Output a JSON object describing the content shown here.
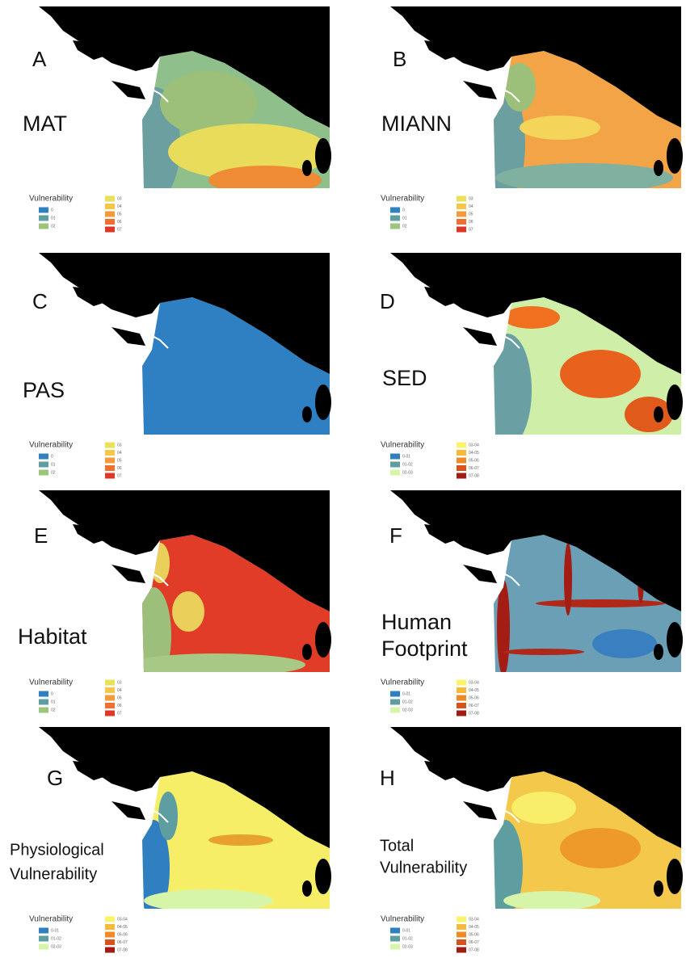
{
  "panels": [
    {
      "letter": "A",
      "label": [
        "MAT"
      ],
      "legend_title": "Vulnerability",
      "legend_labels": [
        "0",
        "01",
        "02",
        "03",
        "04",
        "05",
        "06",
        "07"
      ]
    },
    {
      "letter": "B",
      "label": [
        "MIANN"
      ],
      "legend_title": "Vulnerability",
      "legend_labels": [
        "0",
        "01",
        "02",
        "03",
        "04",
        "05",
        "06",
        "07"
      ]
    },
    {
      "letter": "C",
      "label": [
        "PAS"
      ],
      "legend_title": "Vulnerability",
      "legend_labels": [
        "0",
        "01",
        "02",
        "03",
        "04",
        "05",
        "06",
        "07"
      ]
    },
    {
      "letter": "D",
      "label": [
        "SED"
      ],
      "legend_title": "Vulnerability",
      "legend_labels": [
        "0-01",
        "01-02",
        "02-03",
        "03-04",
        "04-05",
        "05-06",
        "06-07",
        "07-08"
      ]
    },
    {
      "letter": "E",
      "label": [
        "Habitat"
      ],
      "legend_title": "Vulnerability",
      "legend_labels": [
        "0",
        "01",
        "02",
        "03",
        "04",
        "05",
        "06",
        "07"
      ]
    },
    {
      "letter": "F",
      "label": [
        "Human",
        "Footprint"
      ],
      "legend_title": "Vulnerability",
      "legend_labels": [
        "0-01",
        "01-02",
        "02-03",
        "03-04",
        "04-05",
        "05-06",
        "06-07",
        "07-08"
      ]
    },
    {
      "letter": "G",
      "label": [
        "Physiological",
        "Vulnerability"
      ],
      "legend_title": "Vulnerability",
      "legend_labels": [
        "0-01",
        "01-02",
        "02-03",
        "03-04",
        "04-05",
        "05-06",
        "06-07",
        "07-08"
      ]
    },
    {
      "letter": "H",
      "label": [
        "Total",
        "Vulnerability"
      ],
      "legend_title": "Vulnerability",
      "legend_labels": [
        "0-01",
        "01-02",
        "02-03",
        "03-04",
        "04-05",
        "05-06",
        "06-07",
        "07-08"
      ]
    }
  ]
}
